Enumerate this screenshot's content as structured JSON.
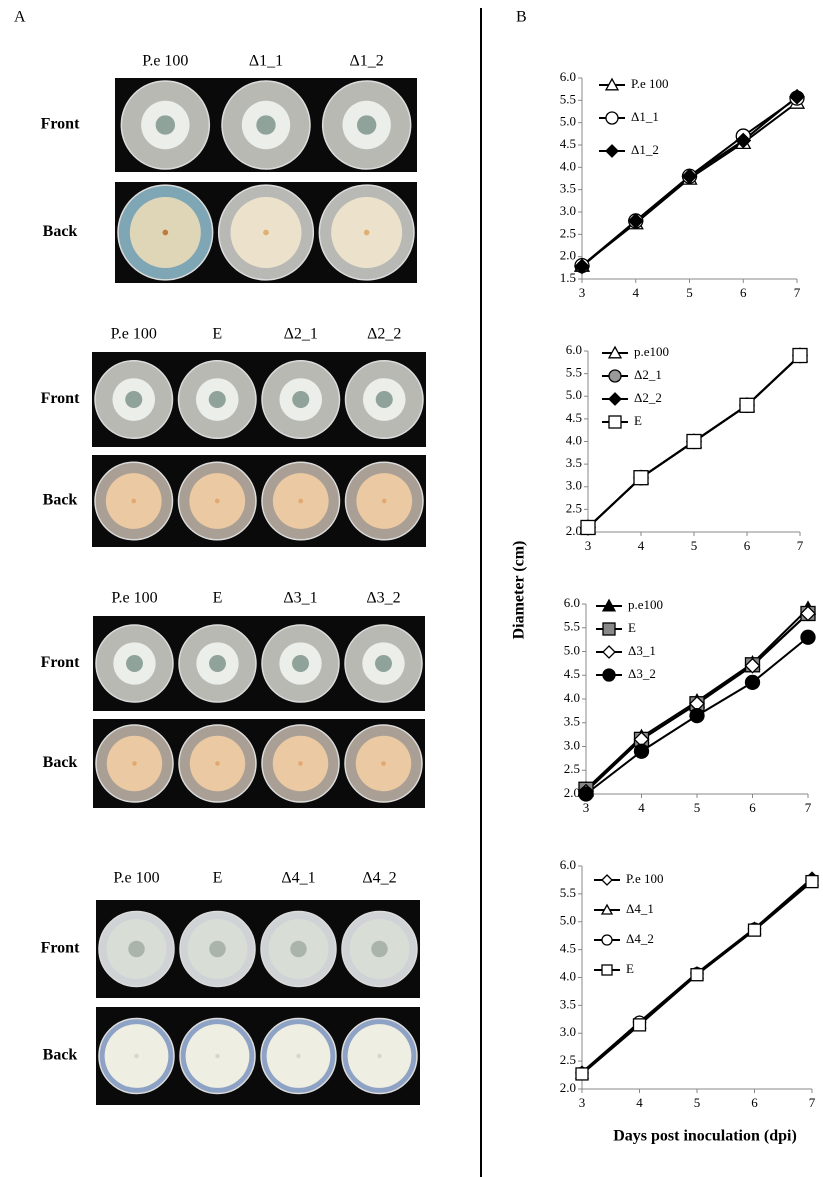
{
  "panel_labels": [
    "A",
    "B"
  ],
  "photo_panels": [
    {
      "columns": [
        "P.e 100",
        "Δ1_1",
        "Δ1_2"
      ],
      "rows": [
        "Front",
        "Back"
      ]
    },
    {
      "columns": [
        "P.e 100",
        "E",
        "Δ2_1",
        "Δ2_2"
      ],
      "rows": [
        "Front",
        "Back"
      ]
    },
    {
      "columns": [
        "P.e 100",
        "E",
        "Δ3_1",
        "Δ3_2"
      ],
      "rows": [
        "Front",
        "Back"
      ]
    },
    {
      "columns": [
        "P.e 100",
        "E",
        "Δ4_1",
        "Δ4_2"
      ],
      "rows": [
        "Front",
        "Back"
      ]
    }
  ],
  "axes": {
    "y_label": "Diameter (cm)",
    "x_label": "Days post inoculation (dpi)"
  },
  "chart_data": [
    {
      "type": "line",
      "x": [
        3,
        4,
        5,
        6,
        7
      ],
      "xlim": [
        3,
        7
      ],
      "xticks": [
        3,
        4,
        5,
        6,
        7
      ],
      "ylim": [
        1.5,
        6
      ],
      "yticks": [
        1.5,
        {
          "value": 2,
          "label": "2.0"
        },
        2.5,
        {
          "value": 3,
          "label": "3.0"
        },
        3.5,
        {
          "value": 4,
          "label": "4.0"
        },
        4.5,
        {
          "value": 5,
          "label": "5.0"
        },
        5.5,
        {
          "value": 6,
          "label": "6.0"
        }
      ],
      "legend": "upper left",
      "series": [
        {
          "name": "P.e 100",
          "color": "#000000",
          "marker": "triangle",
          "fill": "#ffffff",
          "values": [
            1.8,
            2.75,
            3.75,
            4.55,
            5.45
          ]
        },
        {
          "name": "Δ1_1",
          "color": "#000000",
          "marker": "circle",
          "fill": "#ffffff",
          "values": [
            1.8,
            2.8,
            3.8,
            4.7,
            5.55
          ]
        },
        {
          "name": "Δ1_2",
          "color": "#000000",
          "marker": "diamond",
          "fill": "#000000",
          "values": [
            1.78,
            2.8,
            3.8,
            4.6,
            5.58
          ]
        }
      ]
    },
    {
      "type": "line",
      "x": [
        3,
        4,
        5,
        6,
        7
      ],
      "xlim": [
        3,
        7
      ],
      "xticks": [
        3,
        4,
        5,
        6,
        7
      ],
      "ylim": [
        2,
        6
      ],
      "yticks": [
        {
          "value": 2,
          "label": "2.0"
        },
        2.5,
        {
          "value": 3,
          "label": "3.0"
        },
        3.5,
        {
          "value": 4,
          "label": "4.0"
        },
        4.5,
        {
          "value": 5,
          "label": "5.0"
        },
        5.5,
        {
          "value": 6,
          "label": "6.0"
        }
      ],
      "legend": "upper left",
      "series": [
        {
          "name": "p.e100",
          "color": "#000000",
          "marker": "triangle",
          "fill": "#ffffff",
          "values": [
            2.1,
            3.2,
            4.0,
            4.8,
            5.9
          ]
        },
        {
          "name": "Δ2_1",
          "color": "#000000",
          "marker": "circle",
          "fill": "#999999",
          "values": [
            2.1,
            3.2,
            4.0,
            4.8,
            5.9
          ]
        },
        {
          "name": "Δ2_2",
          "color": "#000000",
          "marker": "diamond",
          "fill": "#000000",
          "values": [
            2.1,
            3.2,
            4.0,
            4.8,
            5.9
          ]
        },
        {
          "name": "E",
          "color": "#000000",
          "marker": "square",
          "fill": "#ffffff",
          "values": [
            2.1,
            3.2,
            4.0,
            4.8,
            5.9
          ]
        }
      ]
    },
    {
      "type": "line",
      "x": [
        3,
        4,
        5,
        6,
        7
      ],
      "xlim": [
        3,
        7
      ],
      "xticks": [
        3,
        4,
        5,
        6,
        7
      ],
      "ylim": [
        2,
        6
      ],
      "yticks": [
        {
          "value": 2,
          "label": "2.0"
        },
        2.5,
        {
          "value": 3,
          "label": "3.0"
        },
        3.5,
        {
          "value": 4,
          "label": "4.0"
        },
        4.5,
        {
          "value": 5,
          "label": "5.0"
        },
        5.5,
        {
          "value": 6,
          "label": "6.0"
        }
      ],
      "legend": "upper left",
      "series": [
        {
          "name": "p.e100",
          "color": "#000000",
          "marker": "triangle",
          "fill": "#000000",
          "values": [
            2.1,
            3.2,
            3.95,
            4.75,
            5.9
          ]
        },
        {
          "name": "E",
          "color": "#000000",
          "marker": "square",
          "fill": "#888888",
          "values": [
            2.1,
            3.15,
            3.9,
            4.72,
            5.8
          ]
        },
        {
          "name": "Δ3_1",
          "color": "#000000",
          "marker": "diamond",
          "fill": "#ffffff",
          "values": [
            2.05,
            3.15,
            3.9,
            4.7,
            5.8
          ]
        },
        {
          "name": "Δ3_2",
          "color": "#000000",
          "marker": "circle",
          "fill": "#000000",
          "values": [
            2.0,
            2.9,
            3.65,
            4.35,
            5.3
          ]
        }
      ]
    },
    {
      "type": "line",
      "x": [
        3,
        4,
        5,
        6,
        7
      ],
      "xlim": [
        3,
        7
      ],
      "xticks": [
        3,
        4,
        5,
        6,
        7
      ],
      "ylim": [
        2,
        6
      ],
      "yticks": [
        {
          "value": 2,
          "label": "2.0"
        },
        2.5,
        {
          "value": 3,
          "label": "3.0"
        },
        3.5,
        {
          "value": 4,
          "label": "4.0"
        },
        4.5,
        {
          "value": 5,
          "label": "5.0"
        },
        5.5,
        {
          "value": 6,
          "label": "6.0"
        }
      ],
      "legend": "upper left",
      "series": [
        {
          "name": "P.e 100",
          "color": "#000000",
          "marker": "diamond",
          "fill": "#ffffff",
          "values": [
            2.3,
            3.2,
            4.08,
            4.88,
            5.78
          ]
        },
        {
          "name": "Δ4_1",
          "color": "#000000",
          "marker": "triangle",
          "fill": "#ffffff",
          "values": [
            2.28,
            3.18,
            4.07,
            4.87,
            5.75
          ]
        },
        {
          "name": "Δ4_2",
          "color": "#000000",
          "marker": "circle",
          "fill": "#ffffff",
          "values": [
            2.28,
            3.2,
            4.07,
            4.87,
            5.74
          ]
        },
        {
          "name": "E",
          "color": "#000000",
          "marker": "square",
          "fill": "#ffffff",
          "values": [
            2.27,
            3.15,
            4.05,
            4.85,
            5.72
          ]
        }
      ]
    }
  ]
}
